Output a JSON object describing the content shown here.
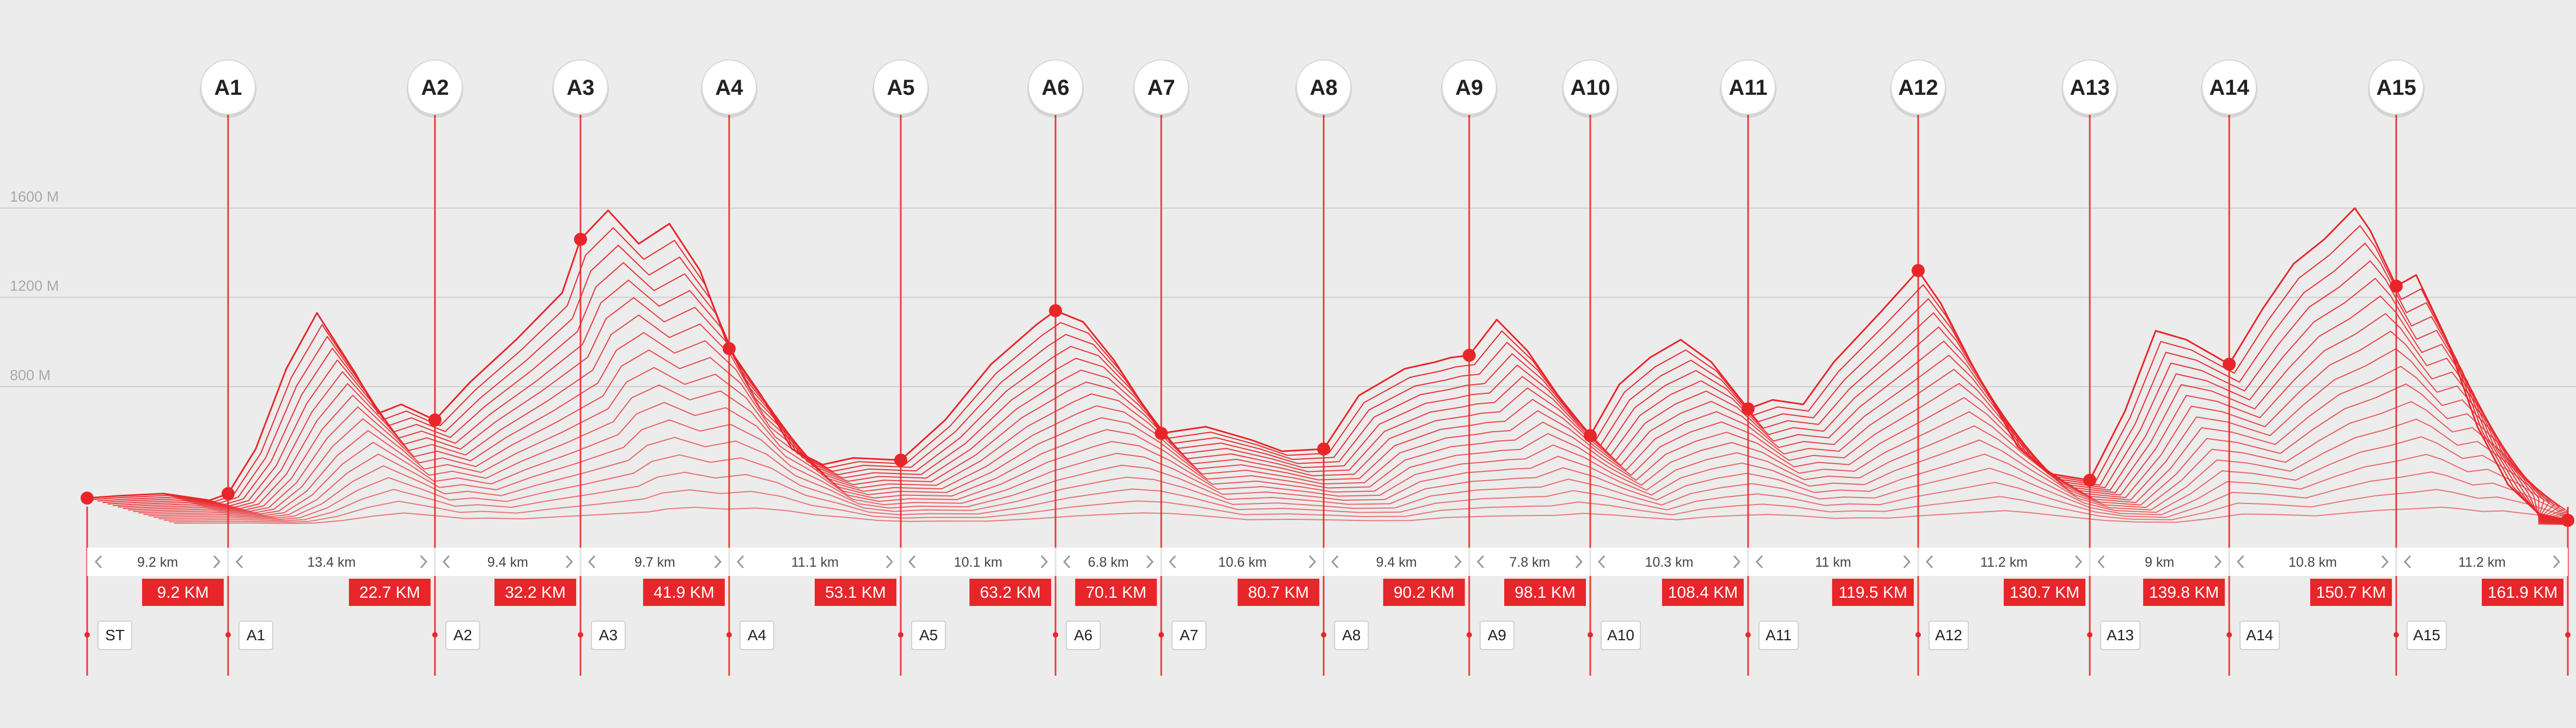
{
  "colors": {
    "background": "#ececec",
    "profile": "#e8262a",
    "marker_line": "#ec3b3b",
    "badge_bg": "#e8262a",
    "grid": "#cfcfcf",
    "segment_bar": "#ffffff",
    "text_dark": "#222222",
    "axis_text": "#a9a9a9"
  },
  "chart_data": {
    "type": "area",
    "title": "",
    "xlabel": "",
    "ylabel": "",
    "x_unit": "km",
    "xlim": [
      0,
      161.9
    ],
    "ylim": [
      200,
      1800
    ],
    "y_ticks": [
      {
        "value": 1600,
        "label": "1600 M"
      },
      {
        "value": 1200,
        "label": "1200 M"
      },
      {
        "value": 800,
        "label": "800 M"
      }
    ],
    "checkpoints": [
      {
        "id": "ST",
        "km": 0,
        "km_label": "",
        "elevation": 300,
        "show_top": false
      },
      {
        "id": "A1",
        "km": 9.2,
        "km_label": "9.2 KM",
        "elevation": 320,
        "show_top": true
      },
      {
        "id": "A2",
        "km": 22.7,
        "km_label": "22.7 KM",
        "elevation": 650,
        "show_top": true
      },
      {
        "id": "A3",
        "km": 32.2,
        "km_label": "32.2 KM",
        "elevation": 1460,
        "show_top": true
      },
      {
        "id": "A4",
        "km": 41.9,
        "km_label": "41.9 KM",
        "elevation": 970,
        "show_top": true
      },
      {
        "id": "A5",
        "km": 53.1,
        "km_label": "53.1 KM",
        "elevation": 470,
        "show_top": true
      },
      {
        "id": "A6",
        "km": 63.2,
        "km_label": "63.2 KM",
        "elevation": 1140,
        "show_top": true
      },
      {
        "id": "A7",
        "km": 70.1,
        "km_label": "70.1 KM",
        "elevation": 590,
        "show_top": true
      },
      {
        "id": "A8",
        "km": 80.7,
        "km_label": "80.7 KM",
        "elevation": 520,
        "show_top": true
      },
      {
        "id": "A9",
        "km": 90.2,
        "km_label": "90.2 KM",
        "elevation": 940,
        "show_top": true
      },
      {
        "id": "A10",
        "km": 98.1,
        "km_label": "98.1 KM",
        "elevation": 580,
        "show_top": true
      },
      {
        "id": "A11",
        "km": 108.4,
        "km_label": "108.4 KM",
        "elevation": 700,
        "show_top": true
      },
      {
        "id": "A12",
        "km": 119.5,
        "km_label": "119.5 KM",
        "elevation": 1320,
        "show_top": true
      },
      {
        "id": "A13",
        "km": 130.7,
        "km_label": "130.7 KM",
        "elevation": 380,
        "show_top": true
      },
      {
        "id": "A14",
        "km": 139.8,
        "km_label": "139.8 KM",
        "elevation": 900,
        "show_top": true
      },
      {
        "id": "A15",
        "km": 150.7,
        "km_label": "150.7 KM",
        "elevation": 1250,
        "show_top": true
      },
      {
        "id": "",
        "km": 161.9,
        "km_label": "161.9 KM",
        "elevation": 200,
        "show_top": false
      }
    ],
    "segments": [
      "9.2 km",
      "13.4 km",
      "9.4 km",
      "9.7 km",
      "11.1 km",
      "10.1 km",
      "6.8 km",
      "10.6 km",
      "9.4 km",
      "7.8 km",
      "10.3 km",
      "11 km",
      "11.2 km",
      "9 km",
      "10.8 km",
      "11.2 km"
    ],
    "profile_km": [
      0,
      2,
      5,
      8,
      9.2,
      11,
      13,
      15,
      17.5,
      19,
      20.5,
      22.7,
      25,
      28,
      31,
      32.2,
      34,
      36,
      38,
      40,
      41.9,
      44,
      46,
      48,
      50,
      53.1,
      56,
      59,
      62,
      63.2,
      65,
      67,
      70.1,
      73,
      76,
      78,
      80.7,
      83,
      86,
      88,
      89,
      90.2,
      92,
      94,
      96,
      98.1,
      100,
      102,
      104,
      106,
      108.4,
      110,
      112,
      114,
      117,
      119.5,
      121,
      123,
      126,
      128,
      130.7,
      133,
      135,
      137,
      139.8,
      142,
      144,
      146,
      148,
      149,
      150.7,
      152,
      154,
      156,
      158,
      160,
      161.9
    ],
    "profile_elev": [
      300,
      310,
      320,
      290,
      320,
      520,
      880,
      1130,
      860,
      680,
      720,
      650,
      820,
      1010,
      1220,
      1460,
      1590,
      1440,
      1530,
      1320,
      970,
      760,
      520,
      450,
      480,
      470,
      650,
      900,
      1080,
      1140,
      1090,
      920,
      590,
      620,
      560,
      510,
      520,
      760,
      880,
      910,
      930,
      940,
      1100,
      960,
      760,
      580,
      810,
      930,
      1010,
      910,
      700,
      740,
      720,
      910,
      1130,
      1320,
      1170,
      900,
      530,
      410,
      380,
      690,
      1050,
      1010,
      900,
      1150,
      1350,
      1460,
      1600,
      1500,
      1250,
      1300,
      1010,
      620,
      360,
      230,
      200
    ]
  }
}
